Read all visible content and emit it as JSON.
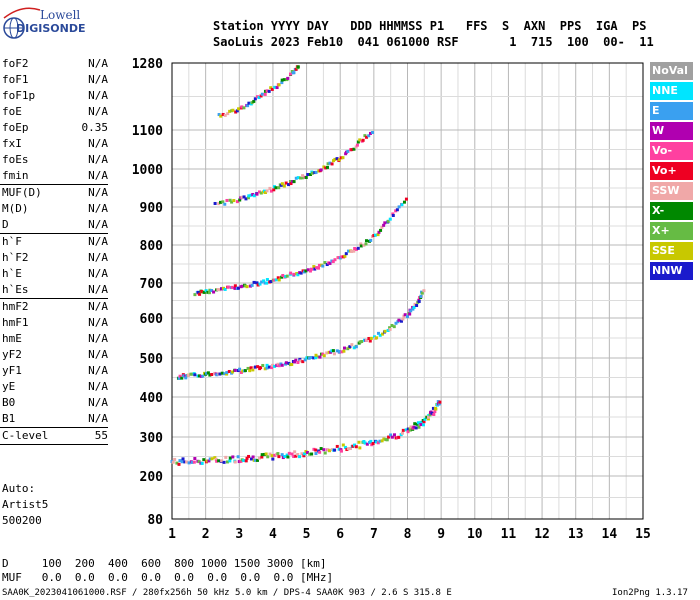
{
  "logo": {
    "line1": "Lowell",
    "line2": "DIGISONDE"
  },
  "header": {
    "line1": "Station YYYY DAY   DDD HHMMSS P1   FFS  S  AXN  PPS  IGA  PS",
    "line2": "SaoLuis 2023 Feb10  041 061000 RSF       1  715  100  00-  11"
  },
  "params": [
    {
      "name": "foF2",
      "value": "N/A"
    },
    {
      "name": "foF1",
      "value": "N/A"
    },
    {
      "name": "foF1p",
      "value": "N/A"
    },
    {
      "name": "foE",
      "value": "N/A"
    },
    {
      "name": "foEp",
      "value": "0.35"
    },
    {
      "name": "fxI",
      "value": "N/A"
    },
    {
      "name": "foEs",
      "value": "N/A"
    },
    {
      "name": "fmin",
      "value": "N/A"
    },
    {
      "sep": true
    },
    {
      "name": "MUF(D)",
      "value": "N/A"
    },
    {
      "name": "M(D)",
      "value": "N/A"
    },
    {
      "name": "D",
      "value": "N/A"
    },
    {
      "sep": true
    },
    {
      "name": "h`F",
      "value": "N/A"
    },
    {
      "name": "h`F2",
      "value": "N/A"
    },
    {
      "name": "h`E",
      "value": "N/A"
    },
    {
      "name": "h`Es",
      "value": "N/A"
    },
    {
      "sep": true
    },
    {
      "name": "hmF2",
      "value": "N/A"
    },
    {
      "name": "hmF1",
      "value": "N/A"
    },
    {
      "name": "hmE",
      "value": "N/A"
    },
    {
      "name": "yF2",
      "value": "N/A"
    },
    {
      "name": "yF1",
      "value": "N/A"
    },
    {
      "name": "yE",
      "value": "N/A"
    },
    {
      "name": "B0",
      "value": "N/A"
    },
    {
      "name": "B1",
      "value": "N/A"
    },
    {
      "sep": true
    },
    {
      "name": "C-level",
      "value": "55"
    },
    {
      "sep": true
    }
  ],
  "autoscale": {
    "line1": "Auto:",
    "line2": "Artist5",
    "line3": "500200"
  },
  "legend": [
    {
      "label": "NoVal",
      "color": "#a0a0a0"
    },
    {
      "label": "NNE",
      "color": "#00e5ff"
    },
    {
      "label": "E",
      "color": "#3aa0f0"
    },
    {
      "label": "W",
      "color": "#b000b0"
    },
    {
      "label": "Vo-",
      "color": "#ff40a0"
    },
    {
      "label": "Vo+",
      "color": "#ee0022"
    },
    {
      "label": "SSW",
      "color": "#f0a8a8"
    },
    {
      "label": "X-",
      "color": "#008800"
    },
    {
      "label": "X+",
      "color": "#66bb44"
    },
    {
      "label": "SSE",
      "color": "#c8c800"
    },
    {
      "label": "NNW",
      "color": "#1a1acc"
    }
  ],
  "mufTable": {
    "dRow": "D     100  200  400  600  800 1000 1500 3000 [km]",
    "mufRow": "MUF   0.0  0.0  0.0  0.0  0.0  0.0  0.0  0.0 [MHz]"
  },
  "footer": {
    "left": "SAA0K_2023041061000.RSF / 280fx256h 50 kHz 5.0 km / DPS-4 SAA0K 903 / 2.6 S 315.8 E",
    "right": "Ion2Png 1.3.17"
  },
  "chart_data": {
    "type": "scatter",
    "xlim": [
      1,
      15
    ],
    "ylim": [
      80,
      1280
    ],
    "xticks": [
      1,
      2,
      3,
      4,
      5,
      6,
      7,
      8,
      9,
      10,
      11,
      12,
      13,
      14,
      15
    ],
    "yticks": [
      80,
      200,
      300,
      400,
      500,
      600,
      700,
      800,
      900,
      1000,
      1100,
      1280
    ],
    "grid": true,
    "series": [
      {
        "points": [
          [
            1.0,
            233
          ],
          [
            1.5,
            234
          ],
          [
            2.0,
            236
          ],
          [
            2.5,
            238
          ],
          [
            3.0,
            241
          ],
          [
            3.5,
            244
          ],
          [
            4.0,
            247
          ],
          [
            4.5,
            251
          ],
          [
            5.0,
            256
          ],
          [
            5.5,
            261
          ],
          [
            6.0,
            267
          ],
          [
            6.5,
            275
          ],
          [
            7.0,
            284
          ],
          [
            7.5,
            296
          ],
          [
            8.0,
            312
          ],
          [
            8.3,
            325
          ],
          [
            8.6,
            345
          ],
          [
            8.8,
            365
          ],
          [
            9.0,
            390
          ]
        ]
      },
      {
        "points": [
          [
            1.2,
            450
          ],
          [
            1.5,
            452
          ],
          [
            2.0,
            456
          ],
          [
            2.5,
            460
          ],
          [
            3.0,
            465
          ],
          [
            3.5,
            472
          ],
          [
            4.0,
            478
          ],
          [
            4.5,
            485
          ],
          [
            5.0,
            494
          ],
          [
            5.5,
            505
          ],
          [
            6.0,
            517
          ],
          [
            6.5,
            531
          ],
          [
            7.0,
            548
          ],
          [
            7.5,
            572
          ],
          [
            8.0,
            607
          ],
          [
            8.3,
            640
          ],
          [
            8.5,
            680
          ]
        ]
      },
      {
        "points": [
          [
            1.7,
            668
          ],
          [
            2.0,
            672
          ],
          [
            2.5,
            680
          ],
          [
            3.0,
            688
          ],
          [
            3.5,
            696
          ],
          [
            4.0,
            706
          ],
          [
            4.5,
            718
          ],
          [
            5.0,
            730
          ],
          [
            5.5,
            746
          ],
          [
            6.0,
            764
          ],
          [
            6.5,
            790
          ],
          [
            7.0,
            820
          ],
          [
            7.5,
            870
          ],
          [
            8.0,
            920
          ]
        ]
      },
      {
        "points": [
          [
            2.3,
            905
          ],
          [
            3.0,
            918
          ],
          [
            3.5,
            932
          ],
          [
            4.0,
            946
          ],
          [
            4.5,
            962
          ],
          [
            5.0,
            980
          ],
          [
            5.5,
            1002
          ],
          [
            6.0,
            1025
          ],
          [
            6.5,
            1060
          ],
          [
            7.0,
            1100
          ]
        ]
      },
      {
        "points": [
          [
            2.4,
            1135
          ],
          [
            3.0,
            1155
          ],
          [
            3.5,
            1180
          ],
          [
            4.0,
            1210
          ],
          [
            4.5,
            1245
          ],
          [
            4.8,
            1275
          ]
        ]
      }
    ]
  }
}
